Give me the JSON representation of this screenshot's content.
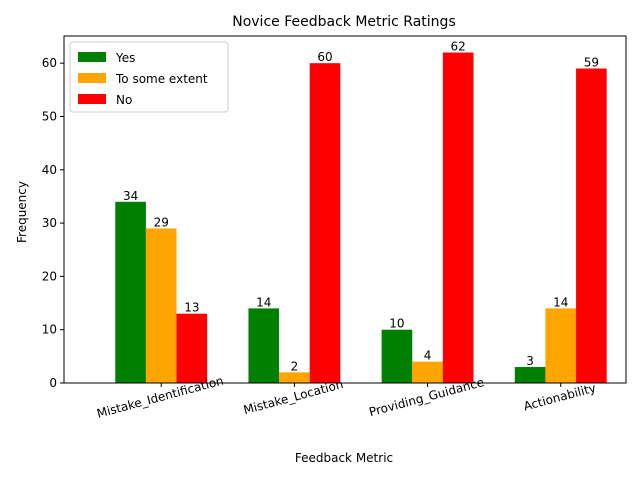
{
  "chart_data": {
    "type": "bar",
    "title": "Novice Feedback Metric Ratings",
    "xlabel": "Feedback Metric",
    "ylabel": "Frequency",
    "categories": [
      "Mistake_Identification",
      "Mistake_Location",
      "Providing_Guidance",
      "Actionability"
    ],
    "series": [
      {
        "name": "Yes",
        "color": "#008000",
        "values": [
          34,
          14,
          10,
          3
        ]
      },
      {
        "name": "To some extent",
        "color": "#ffa500",
        "values": [
          29,
          2,
          4,
          14
        ]
      },
      {
        "name": "No",
        "color": "#ff0000",
        "values": [
          13,
          60,
          62,
          59
        ]
      }
    ],
    "ylim": [
      0,
      65.1
    ],
    "yticks": [
      0,
      10,
      20,
      30,
      40,
      50,
      60
    ],
    "grid": false,
    "legend_position": "upper-left",
    "xtick_rotation": 15
  }
}
